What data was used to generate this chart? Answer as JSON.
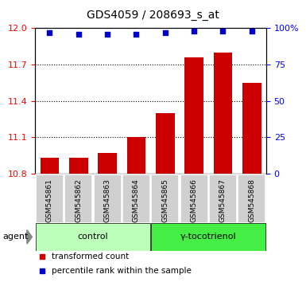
{
  "title": "GDS4059 / 208693_s_at",
  "samples": [
    "GSM545861",
    "GSM545862",
    "GSM545863",
    "GSM545864",
    "GSM545865",
    "GSM545866",
    "GSM545867",
    "GSM545868"
  ],
  "bar_values": [
    10.93,
    10.93,
    10.97,
    11.1,
    11.3,
    11.76,
    11.8,
    11.55
  ],
  "percentile_values": [
    97,
    96,
    96,
    96,
    97,
    98,
    98,
    98
  ],
  "ylim": [
    10.8,
    12.0
  ],
  "yticks_left": [
    10.8,
    11.1,
    11.4,
    11.7,
    12.0
  ],
  "yticks_right": [
    0,
    25,
    50,
    75,
    100
  ],
  "bar_color": "#cc0000",
  "dot_color": "#0000cc",
  "bar_width": 0.65,
  "groups": [
    {
      "label": "control",
      "indices": [
        0,
        1,
        2,
        3
      ],
      "color": "#bbffbb"
    },
    {
      "label": "γ-tocotrienol",
      "indices": [
        4,
        5,
        6,
        7
      ],
      "color": "#44ee44"
    }
  ],
  "agent_label": "agent",
  "legend_bar_label": "transformed count",
  "legend_dot_label": "percentile rank within the sample",
  "grid_linestyle": ":",
  "grid_linewidth": 0.8,
  "plot_bg": "#ffffff",
  "sample_bg": "#d0d0d0",
  "dot_size": 25,
  "title_fontsize": 10,
  "tick_fontsize": 8,
  "sample_fontsize": 6.5,
  "group_fontsize": 8,
  "legend_fontsize": 7.5
}
